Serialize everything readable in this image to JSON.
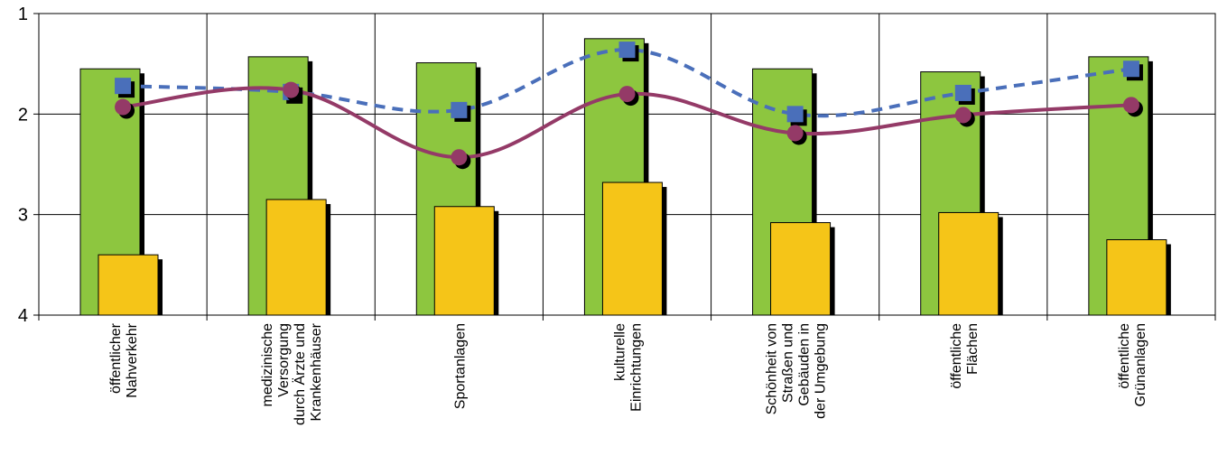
{
  "chart_data": {
    "type": "bar",
    "title": "",
    "xlabel": "",
    "ylabel": "",
    "ylim": [
      1,
      4
    ],
    "y_inverted": true,
    "yticks": [
      "1",
      "2",
      "3",
      "4"
    ],
    "grid": true,
    "categories": [
      [
        "öffentlicher",
        "Nahverkehr"
      ],
      [
        "medizinische",
        "Versorgung",
        "durch Ärzte und",
        "Krankenhäuser"
      ],
      [
        "Sportanlagen"
      ],
      [
        "kulturelle",
        "Einrichtungen"
      ],
      [
        "Schönheit von",
        "Straßen und",
        "Gebäuden in",
        "der Umgebung"
      ],
      [
        "öffentliche",
        "Flächen"
      ],
      [
        "öffentliche",
        "Grünanlagen"
      ]
    ],
    "series": [
      {
        "kind": "bar",
        "color": "#8dc63f",
        "values": [
          1.55,
          1.43,
          1.49,
          1.25,
          1.55,
          1.58,
          1.43
        ]
      },
      {
        "kind": "bar",
        "color": "#f5c518",
        "values": [
          3.4,
          2.85,
          2.92,
          2.68,
          3.08,
          2.98,
          3.25
        ]
      },
      {
        "kind": "line",
        "style": "dashed",
        "marker": "square",
        "color": "#4a6fba",
        "values": [
          1.72,
          1.78,
          1.96,
          1.36,
          2.0,
          1.79,
          1.55
        ]
      },
      {
        "kind": "line",
        "style": "solid",
        "marker": "circle",
        "color": "#943a67",
        "values": [
          1.93,
          1.76,
          2.43,
          1.8,
          2.19,
          2.01,
          1.91
        ]
      }
    ]
  }
}
